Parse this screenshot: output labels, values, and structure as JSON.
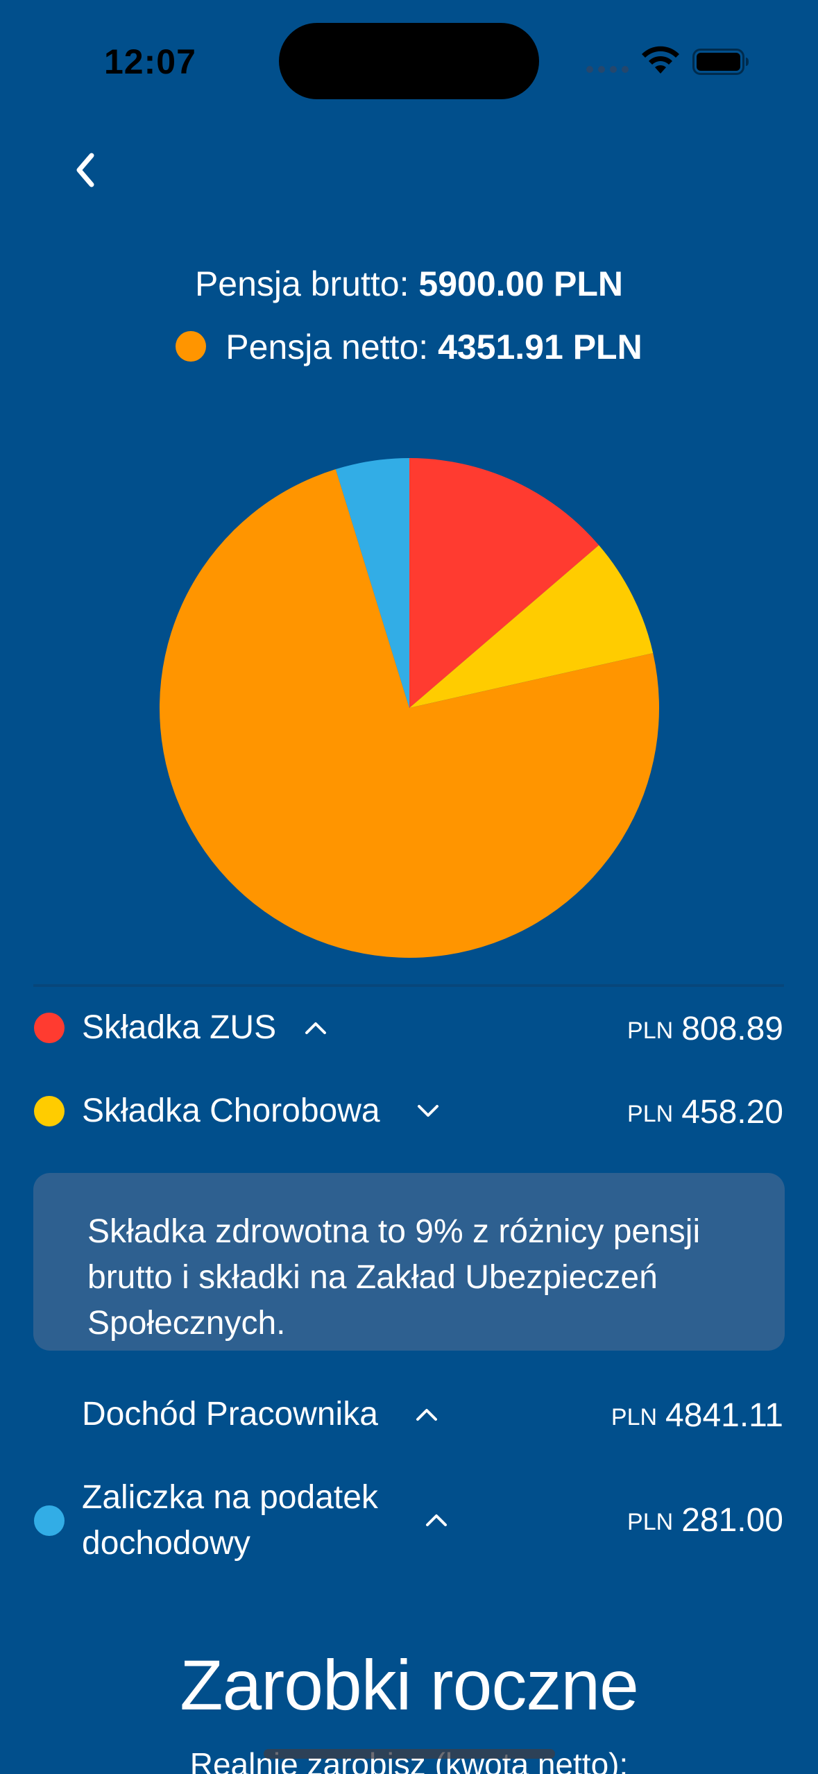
{
  "status_bar": {
    "time": "12:07"
  },
  "header": {
    "back_icon": "chevron-left-icon"
  },
  "summary": {
    "brutto_label": "Pensja brutto:",
    "brutto_value": "5900.00 PLN",
    "netto_label": "Pensja netto:",
    "netto_value": "4351.91 PLN",
    "netto_color": "#ff9500"
  },
  "chart_data": {
    "type": "pie",
    "title": "",
    "slices": [
      {
        "label": "Składka ZUS",
        "value": 808.89,
        "color": "#ff3b30"
      },
      {
        "label": "Składka Chorobowa",
        "value": 458.2,
        "color": "#ffcc00"
      },
      {
        "label": "Pensja netto",
        "value": 4351.91,
        "color": "#ff9500"
      },
      {
        "label": "Zaliczka na podatek dochodowy",
        "value": 281.0,
        "color": "#32ade6"
      }
    ],
    "start_angle": "top",
    "direction": "clockwise"
  },
  "breakdown": {
    "items": [
      {
        "label": "Składka ZUS",
        "currency": "PLN",
        "amount": "808.89",
        "color": "#ff3b30",
        "chevron": "chevron-up-icon"
      },
      {
        "label": "Składka Chorobowa",
        "currency": "PLN",
        "amount": "458.20",
        "color": "#ffcc00",
        "chevron": "chevron-down-icon"
      },
      {
        "label": "Dochód Pracownika",
        "currency": "PLN",
        "amount": "4841.11",
        "chevron": "chevron-up-icon"
      },
      {
        "label": "Zaliczka na podatek dochodowy",
        "currency": "PLN",
        "amount": "281.00",
        "color": "#32ade6",
        "chevron": "chevron-up-icon"
      }
    ],
    "info_text": "Składka zdrowotna to 9% z różnicy pensji brutto i składki na Zakład Ubezpieczeń Społecznych."
  },
  "annual": {
    "title": "Zarobki roczne",
    "subtitle": "Realnie zarobisz (kwota netto):"
  }
}
